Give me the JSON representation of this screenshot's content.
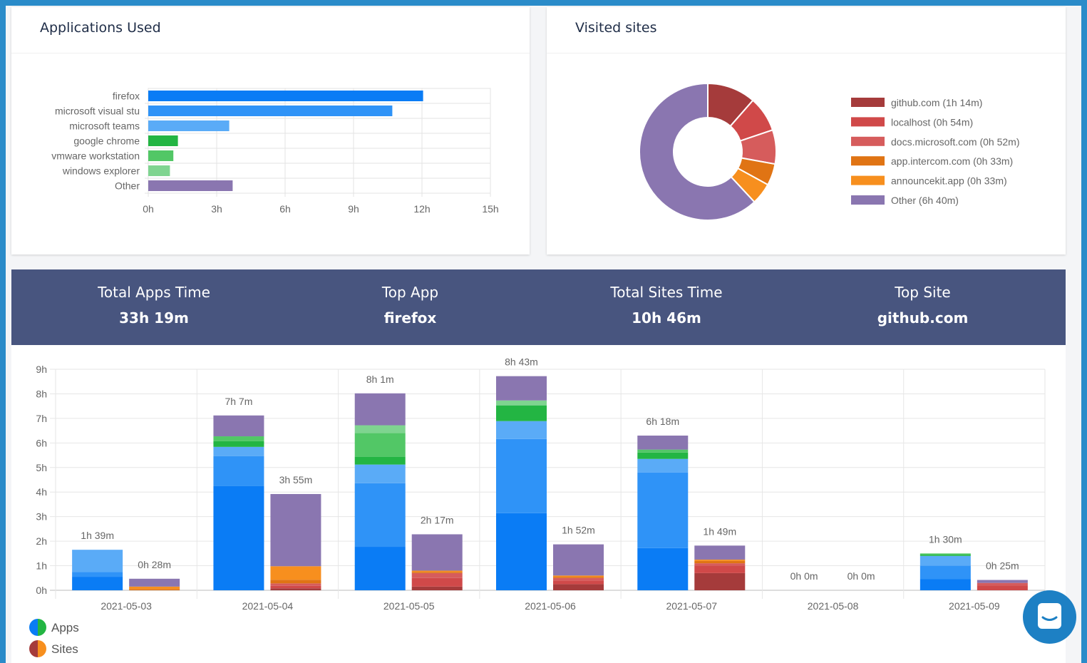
{
  "summary": [
    {
      "label": "Total Apps Time",
      "value": "33h 19m"
    },
    {
      "label": "Top App",
      "value": "firefox"
    },
    {
      "label": "Total Sites Time",
      "value": "10h 46m"
    },
    {
      "label": "Top Site",
      "value": "github.com"
    }
  ],
  "chart_data": [
    {
      "type": "hbar",
      "title": "Applications Used",
      "categories": [
        "firefox",
        "microsoft visual stu",
        "microsoft teams",
        "google chrome",
        "vmware workstation",
        "windows explorer",
        "Other"
      ],
      "values": [
        12.05,
        10.7,
        3.55,
        1.3,
        1.1,
        0.95,
        3.7
      ],
      "colors": [
        "#0a7cf5",
        "#2f93f7",
        "#5aabf7",
        "#23b543",
        "#52c766",
        "#7fd490",
        "#8a76b0"
      ],
      "xlim": [
        0,
        15
      ],
      "xticks": [
        {
          "value": 0,
          "label": "0h"
        },
        {
          "value": 3,
          "label": "3h"
        },
        {
          "value": 6,
          "label": "6h"
        },
        {
          "value": 9,
          "label": "9h"
        },
        {
          "value": 12,
          "label": "12h"
        },
        {
          "value": 15,
          "label": "15h"
        }
      ],
      "grid": true
    },
    {
      "type": "doughnut",
      "title": "Visited sites",
      "categories": [
        "github.com (1h 14m)",
        "localhost (0h 54m)",
        "docs.microsoft.com (0h 52m)",
        "app.intercom.com (0h 33m)",
        "announcekit.app (0h 33m)",
        "Other (6h 40m)"
      ],
      "values": [
        74,
        54,
        52,
        33,
        33,
        400
      ],
      "colors": [
        "#a53b3b",
        "#d04949",
        "#d65c5c",
        "#e07414",
        "#f78f1e",
        "#8a76b0"
      ],
      "legend": "right"
    },
    {
      "type": "stacked-bar",
      "categories": [
        "2021-05-03",
        "2021-05-04",
        "2021-05-05",
        "2021-05-06",
        "2021-05-07",
        "2021-05-08",
        "2021-05-09"
      ],
      "ylim": [
        0,
        9
      ],
      "yticks": [
        {
          "value": 0,
          "label": "0h"
        },
        {
          "value": 1,
          "label": "1h"
        },
        {
          "value": 2,
          "label": "2h"
        },
        {
          "value": 3,
          "label": "3h"
        },
        {
          "value": 4,
          "label": "4h"
        },
        {
          "value": 5,
          "label": "5h"
        },
        {
          "value": 6,
          "label": "6h"
        },
        {
          "value": 7,
          "label": "7h"
        },
        {
          "value": 8,
          "label": "8h"
        },
        {
          "value": 9,
          "label": "9h"
        }
      ],
      "grid": true,
      "legend": "bottom-left",
      "series": [
        {
          "name": "Apps",
          "legend_colors": [
            "#0a7cf5",
            "#23b543"
          ],
          "total_labels": [
            "1h 39m",
            "7h 7m",
            "8h 1m",
            "8h 43m",
            "6h 18m",
            "0h 0m",
            "1h 30m"
          ],
          "segments": [
            {
              "color": "#0a7cf5",
              "values": [
                0.55,
                4.24,
                1.77,
                3.14,
                1.72,
                0,
                0.45
              ]
            },
            {
              "color": "#2f93f7",
              "values": [
                0.2,
                1.22,
                2.59,
                3.02,
                3.08,
                0,
                0.55
              ]
            },
            {
              "color": "#5aabf7",
              "values": [
                0.9,
                0.38,
                0.76,
                0.73,
                0.55,
                0,
                0.4
              ]
            },
            {
              "color": "#23b543",
              "values": [
                0,
                0.23,
                0.32,
                0.64,
                0.26,
                0,
                0.05
              ]
            },
            {
              "color": "#52c766",
              "values": [
                0,
                0.2,
                0.96,
                0,
                0.12,
                0,
                0.05
              ]
            },
            {
              "color": "#7fd490",
              "values": [
                0,
                0,
                0.32,
                0.2,
                0,
                0,
                0
              ]
            },
            {
              "color": "#8a76b0",
              "values": [
                0,
                0.85,
                1.3,
                0.99,
                0.57,
                0,
                0
              ]
            }
          ]
        },
        {
          "name": "Sites",
          "legend_colors": [
            "#a53b3b",
            "#f78f1e"
          ],
          "total_labels": [
            "0h 28m",
            "3h 55m",
            "2h 17m",
            "1h 52m",
            "1h 49m",
            "0h 0m",
            "0h 25m"
          ],
          "segments": [
            {
              "color": "#a53b3b",
              "values": [
                0,
                0.08,
                0.15,
                0.25,
                0.7,
                0,
                0
              ]
            },
            {
              "color": "#d04949",
              "values": [
                0,
                0.1,
                0.35,
                0.15,
                0.3,
                0,
                0.2
              ]
            },
            {
              "color": "#d65c5c",
              "values": [
                0,
                0.1,
                0.2,
                0.1,
                0.1,
                0,
                0.1
              ]
            },
            {
              "color": "#e07414",
              "values": [
                0.05,
                0.15,
                0.05,
                0.05,
                0.1,
                0,
                0
              ]
            },
            {
              "color": "#f78f1e",
              "values": [
                0.1,
                0.55,
                0.05,
                0.05,
                0.05,
                0,
                0
              ]
            },
            {
              "color": "#8a76b0",
              "values": [
                0.32,
                2.94,
                1.48,
                1.27,
                0.57,
                0,
                0.12
              ]
            }
          ]
        }
      ]
    }
  ]
}
